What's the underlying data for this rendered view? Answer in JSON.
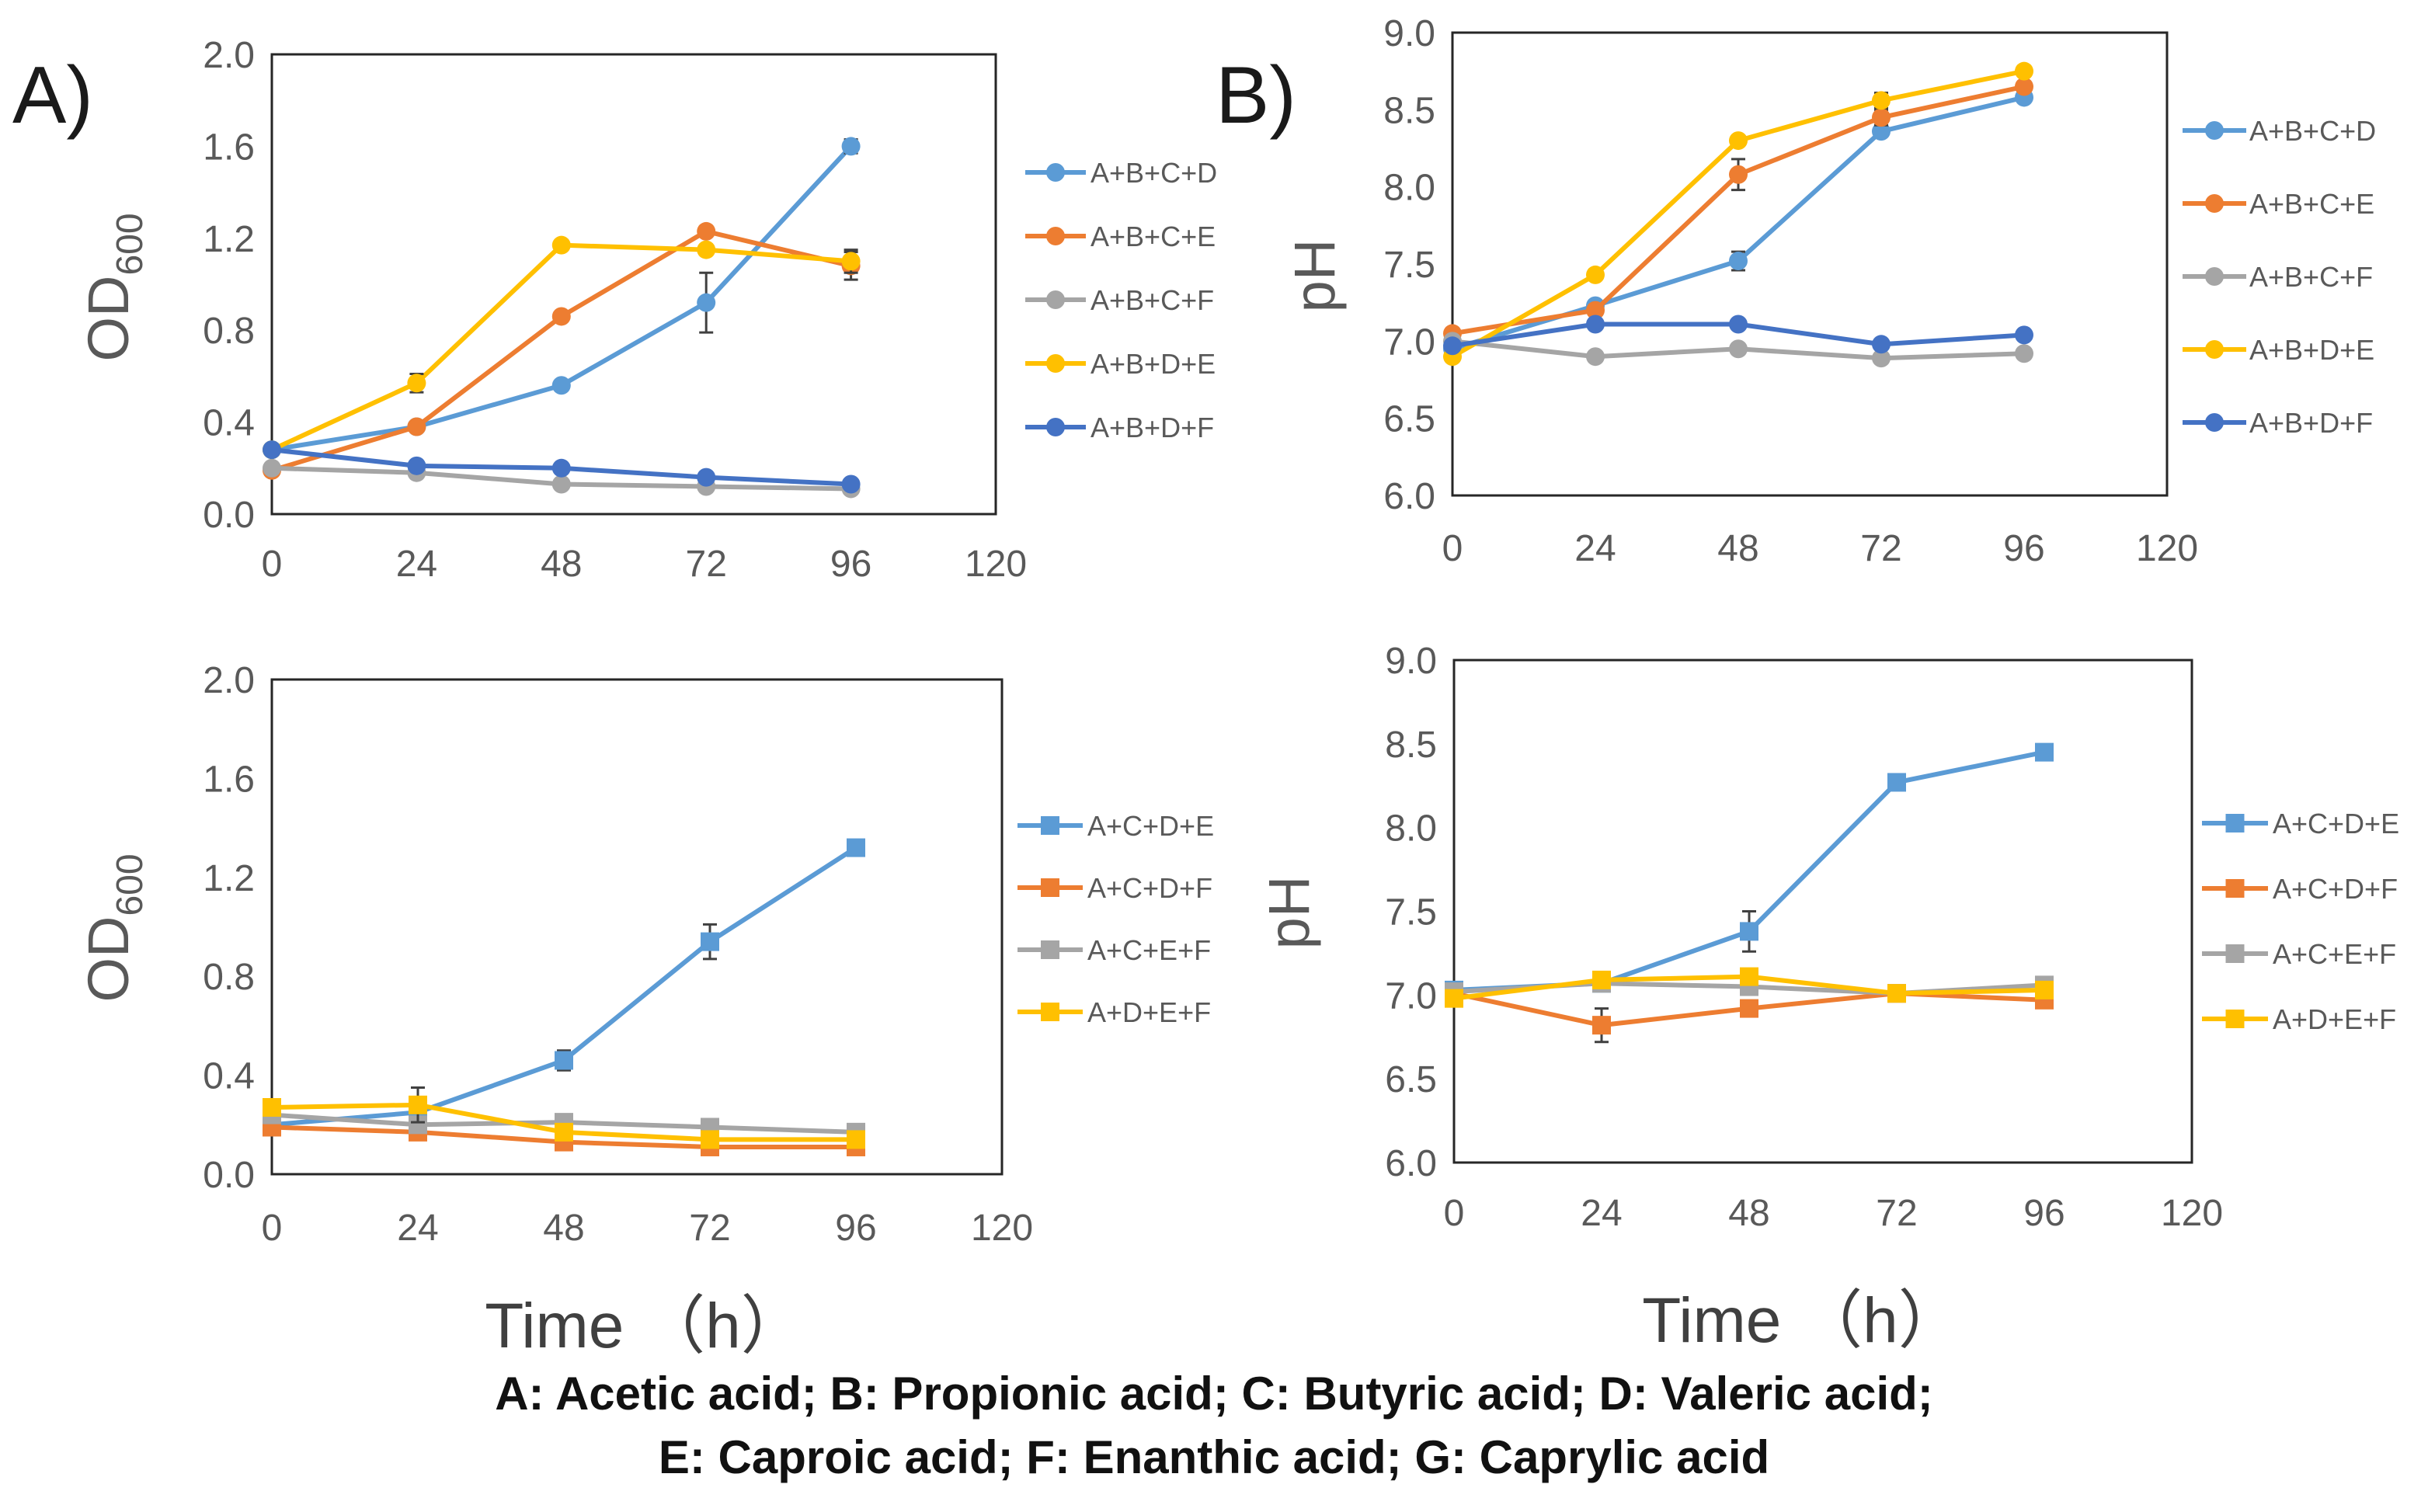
{
  "panel_labels": {
    "a": "A)",
    "b": "B)"
  },
  "x_axis_title": "Time （h）",
  "footer": {
    "line1": "A: Acetic acid; B: Propionic acid; C: Butyric acid; D: Valeric acid;",
    "line2": "E: Caproic acid; F: Enanthic acid; G: Caprylic acid"
  },
  "colors": {
    "blue": "#5B9BD5",
    "orange": "#ED7D31",
    "gray": "#A5A5A5",
    "yellow": "#FFC000",
    "darkblue": "#4472C4",
    "axis": "#262626"
  },
  "chart_data": [
    {
      "id": "top-left",
      "type": "line",
      "marker": "circle",
      "ylabel_main": "OD",
      "ylabel_sub": "600",
      "xlabel": "",
      "xlim": [
        0,
        120
      ],
      "ylim": [
        0,
        2.0
      ],
      "xticks": [
        "0",
        "24",
        "48",
        "72",
        "96",
        "120"
      ],
      "yticks": [
        "0.0",
        "0.4",
        "0.8",
        "1.2",
        "1.6",
        "2.0"
      ],
      "x": [
        0,
        24,
        48,
        72,
        96
      ],
      "series": [
        {
          "name": "A+B+C+D",
          "color": "#5B9BD5",
          "values": [
            0.28,
            0.38,
            0.56,
            0.92,
            1.6
          ],
          "err": [
            0.01,
            0.01,
            0.02,
            0.13,
            0.03
          ]
        },
        {
          "name": "A+B+C+E",
          "color": "#ED7D31",
          "values": [
            0.19,
            0.38,
            0.86,
            1.23,
            1.08
          ],
          "err": [
            0.01,
            0.02,
            0.02,
            0.02,
            0.06
          ]
        },
        {
          "name": "A+B+C+F",
          "color": "#A5A5A5",
          "values": [
            0.2,
            0.18,
            0.13,
            0.12,
            0.11
          ],
          "err": [
            0.01,
            0.01,
            0.01,
            0.01,
            0.01
          ]
        },
        {
          "name": "A+B+D+E",
          "color": "#FFC000",
          "values": [
            0.28,
            0.57,
            1.17,
            1.15,
            1.1
          ],
          "err": [
            0.01,
            0.04,
            0.02,
            0.02,
            0.05
          ]
        },
        {
          "name": "A+B+D+F",
          "color": "#4472C4",
          "values": [
            0.28,
            0.21,
            0.2,
            0.16,
            0.13
          ],
          "err": [
            0.01,
            0.01,
            0.01,
            0.01,
            0.01
          ]
        }
      ]
    },
    {
      "id": "top-right",
      "type": "line",
      "marker": "circle",
      "ylabel_main": "pH",
      "ylabel_sub": "",
      "xlabel": "",
      "xlim": [
        0,
        120
      ],
      "ylim": [
        6.0,
        9.0
      ],
      "xticks": [
        "0",
        "24",
        "48",
        "72",
        "96",
        "120"
      ],
      "yticks": [
        "6.0",
        "6.5",
        "7.0",
        "7.5",
        "8.0",
        "8.5",
        "9.0"
      ],
      "x": [
        0,
        24,
        48,
        72,
        96
      ],
      "series": [
        {
          "name": "A+B+C+D",
          "color": "#5B9BD5",
          "values": [
            6.95,
            7.23,
            7.52,
            8.36,
            8.58
          ],
          "err": [
            0.02,
            0.03,
            0.06,
            0.03,
            0.03
          ]
        },
        {
          "name": "A+B+C+E",
          "color": "#ED7D31",
          "values": [
            7.05,
            7.2,
            8.08,
            8.45,
            8.65
          ],
          "err": [
            0.02,
            0.02,
            0.1,
            0.05,
            0.02
          ]
        },
        {
          "name": "A+B+C+F",
          "color": "#A5A5A5",
          "values": [
            7.0,
            6.9,
            6.95,
            6.89,
            6.92
          ],
          "err": [
            0.02,
            0.02,
            0.02,
            0.02,
            0.02
          ]
        },
        {
          "name": "A+B+D+E",
          "color": "#FFC000",
          "values": [
            6.9,
            7.43,
            8.3,
            8.56,
            8.75
          ],
          "err": [
            0.02,
            0.03,
            0.03,
            0.05,
            0.02
          ]
        },
        {
          "name": "A+B+D+F",
          "color": "#4472C4",
          "values": [
            6.97,
            7.11,
            7.11,
            6.98,
            7.04
          ],
          "err": [
            0.02,
            0.02,
            0.02,
            0.02,
            0.02
          ]
        }
      ]
    },
    {
      "id": "bottom-left",
      "type": "line",
      "marker": "square",
      "ylabel_main": "OD",
      "ylabel_sub": "600",
      "xlabel": "Time （h）",
      "xlim": [
        0,
        120
      ],
      "ylim": [
        0,
        2.0
      ],
      "xticks": [
        "0",
        "24",
        "48",
        "72",
        "96",
        "120"
      ],
      "yticks": [
        "0.0",
        "0.4",
        "0.8",
        "1.2",
        "1.6",
        "2.0"
      ],
      "x": [
        0,
        24,
        48,
        72,
        96
      ],
      "series": [
        {
          "name": "A+C+D+E",
          "color": "#5B9BD5",
          "values": [
            0.2,
            0.25,
            0.46,
            0.94,
            1.32
          ],
          "err": [
            0.01,
            0.01,
            0.04,
            0.07,
            0.02
          ]
        },
        {
          "name": "A+C+D+F",
          "color": "#ED7D31",
          "values": [
            0.19,
            0.17,
            0.13,
            0.11,
            0.11
          ],
          "err": [
            0.01,
            0.01,
            0.01,
            0.01,
            0.01
          ]
        },
        {
          "name": "A+C+E+F",
          "color": "#A5A5A5",
          "values": [
            0.24,
            0.2,
            0.21,
            0.19,
            0.17
          ],
          "err": [
            0.01,
            0.01,
            0.01,
            0.01,
            0.01
          ]
        },
        {
          "name": "A+D+E+F",
          "color": "#FFC000",
          "values": [
            0.27,
            0.28,
            0.17,
            0.14,
            0.14
          ],
          "err": [
            0.01,
            0.07,
            0.01,
            0.01,
            0.01
          ]
        }
      ]
    },
    {
      "id": "bottom-right",
      "type": "line",
      "marker": "square",
      "ylabel_main": "pH",
      "ylabel_sub": "",
      "xlabel": "Time （h）",
      "xlim": [
        0,
        120
      ],
      "ylim": [
        6.0,
        9.0
      ],
      "xticks": [
        "0",
        "24",
        "48",
        "72",
        "96",
        "120"
      ],
      "yticks": [
        "6.0",
        "6.5",
        "7.0",
        "7.5",
        "8.0",
        "8.5",
        "9.0"
      ],
      "x": [
        0,
        24,
        48,
        72,
        96
      ],
      "series": [
        {
          "name": "A+C+D+E",
          "color": "#5B9BD5",
          "values": [
            7.03,
            7.07,
            7.38,
            8.27,
            8.45
          ],
          "err": [
            0.02,
            0.02,
            0.12,
            0.02,
            0.02
          ]
        },
        {
          "name": "A+C+D+F",
          "color": "#ED7D31",
          "values": [
            7.01,
            6.82,
            6.92,
            7.01,
            6.97
          ],
          "err": [
            0.02,
            0.1,
            0.02,
            0.02,
            0.02
          ]
        },
        {
          "name": "A+C+E+F",
          "color": "#A5A5A5",
          "values": [
            7.02,
            7.07,
            7.05,
            7.01,
            7.06
          ],
          "err": [
            0.02,
            0.02,
            0.02,
            0.02,
            0.02
          ]
        },
        {
          "name": "A+D+E+F",
          "color": "#FFC000",
          "values": [
            6.98,
            7.09,
            7.11,
            7.01,
            7.03
          ],
          "err": [
            0.02,
            0.02,
            0.02,
            0.02,
            0.02
          ]
        }
      ]
    }
  ]
}
